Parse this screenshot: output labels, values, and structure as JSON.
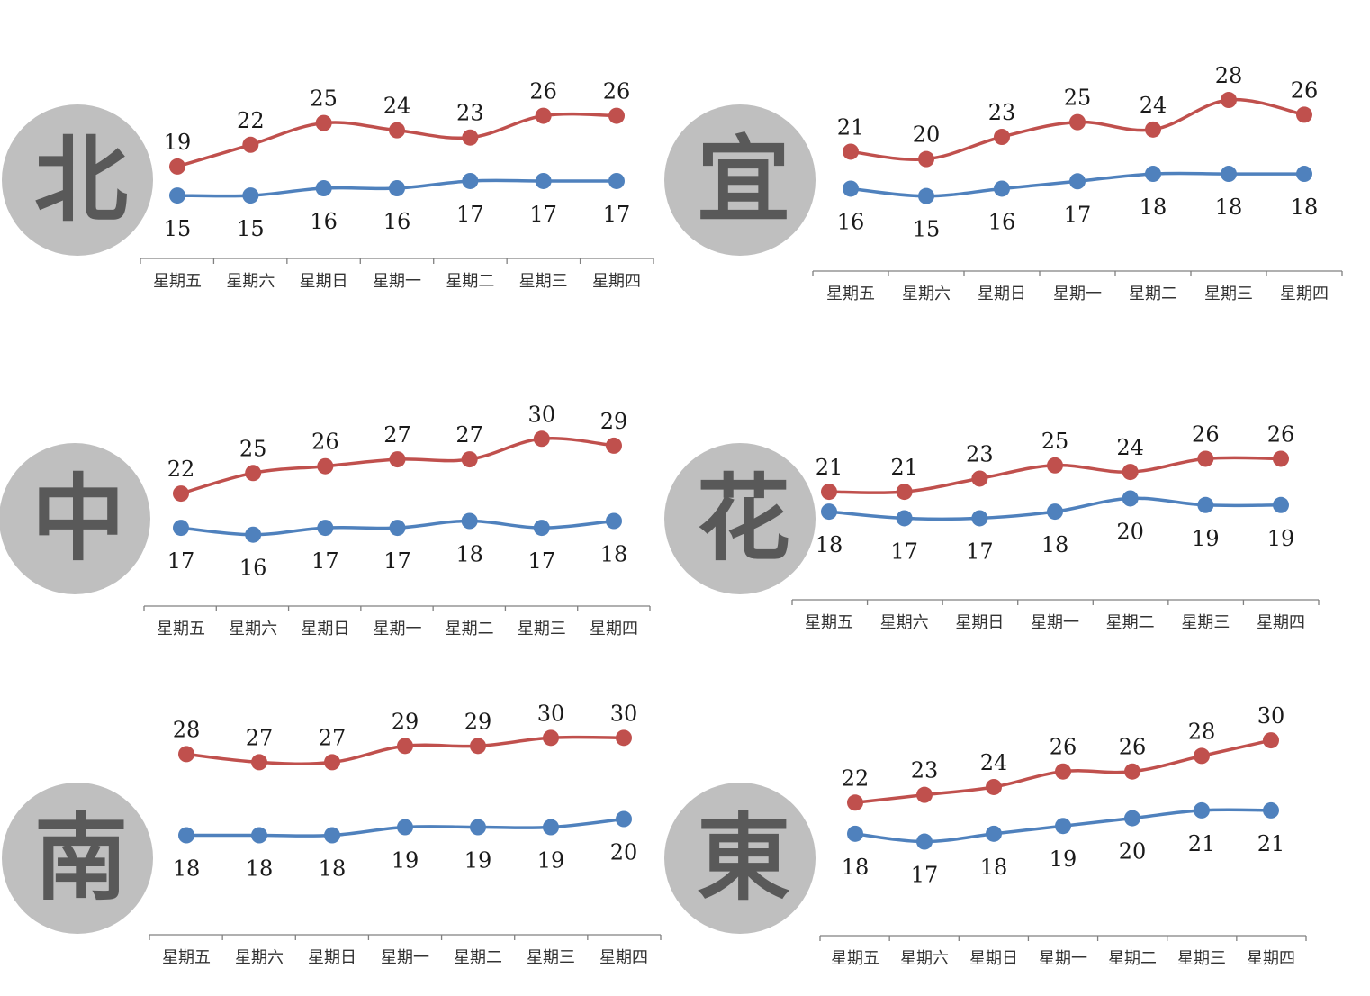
{
  "categories": [
    "星期五",
    "星期六",
    "星期日",
    "星期一",
    "星期二",
    "星期三",
    "星期四"
  ],
  "colors": {
    "high": "#c0504d",
    "low": "#4f81bd",
    "circle": "#bfbfbf",
    "city_text": "#595959",
    "axis": "#808080"
  },
  "chart_data": [
    {
      "type": "line",
      "region_label": "北",
      "categories": [
        "星期五",
        "星期六",
        "星期日",
        "星期一",
        "星期二",
        "星期三",
        "星期四"
      ],
      "series": [
        {
          "values": [
            19,
            22,
            25,
            24,
            23,
            26,
            26
          ],
          "color": "#c0504d"
        },
        {
          "values": [
            15,
            15,
            16,
            16,
            17,
            17,
            17
          ],
          "color": "#4f81bd"
        }
      ],
      "grid": false,
      "legend": "none"
    },
    {
      "type": "line",
      "region_label": "宜",
      "categories": [
        "星期五",
        "星期六",
        "星期日",
        "星期一",
        "星期二",
        "星期三",
        "星期四"
      ],
      "series": [
        {
          "values": [
            21,
            20,
            23,
            25,
            24,
            28,
            26
          ],
          "color": "#c0504d"
        },
        {
          "values": [
            16,
            15,
            16,
            17,
            18,
            18,
            18
          ],
          "color": "#4f81bd"
        }
      ],
      "grid": false,
      "legend": "none"
    },
    {
      "type": "line",
      "region_label": "中",
      "categories": [
        "星期五",
        "星期六",
        "星期日",
        "星期一",
        "星期二",
        "星期三",
        "星期四"
      ],
      "series": [
        {
          "values": [
            22,
            25,
            26,
            27,
            27,
            30,
            29
          ],
          "color": "#c0504d"
        },
        {
          "values": [
            17,
            16,
            17,
            17,
            18,
            17,
            18
          ],
          "color": "#4f81bd"
        }
      ],
      "grid": false,
      "legend": "none"
    },
    {
      "type": "line",
      "region_label": "花",
      "categories": [
        "星期五",
        "星期六",
        "星期日",
        "星期一",
        "星期二",
        "星期三",
        "星期四"
      ],
      "series": [
        {
          "values": [
            21,
            21,
            23,
            25,
            24,
            26,
            26
          ],
          "color": "#c0504d"
        },
        {
          "values": [
            18,
            17,
            17,
            18,
            20,
            19,
            19
          ],
          "color": "#4f81bd"
        }
      ],
      "grid": false,
      "legend": "none"
    },
    {
      "type": "line",
      "region_label": "南",
      "categories": [
        "星期五",
        "星期六",
        "星期日",
        "星期一",
        "星期二",
        "星期三",
        "星期四"
      ],
      "series": [
        {
          "values": [
            28,
            27,
            27,
            29,
            29,
            30,
            30
          ],
          "color": "#c0504d"
        },
        {
          "values": [
            18,
            18,
            18,
            19,
            19,
            19,
            20
          ],
          "color": "#4f81bd"
        }
      ],
      "grid": false,
      "legend": "none"
    },
    {
      "type": "line",
      "region_label": "東",
      "categories": [
        "星期五",
        "星期六",
        "星期日",
        "星期一",
        "星期二",
        "星期三",
        "星期四"
      ],
      "series": [
        {
          "values": [
            22,
            23,
            24,
            26,
            26,
            28,
            30
          ],
          "color": "#c0504d"
        },
        {
          "values": [
            18,
            17,
            18,
            19,
            20,
            21,
            21
          ],
          "color": "#4f81bd"
        }
      ],
      "grid": false,
      "legend": "none"
    }
  ]
}
